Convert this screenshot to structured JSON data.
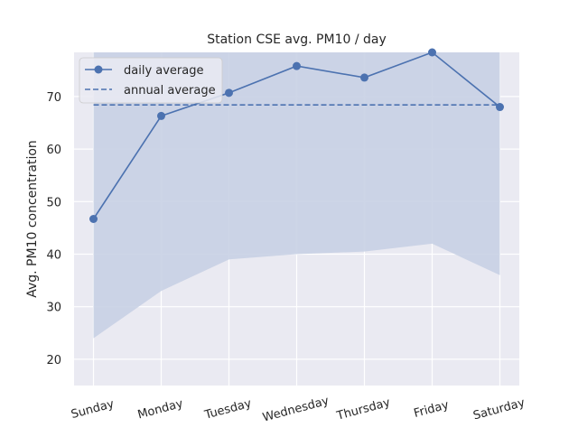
{
  "chart_data": {
    "type": "line",
    "title": "Station CSE avg. PM10 / day",
    "xlabel": "",
    "ylabel": "Avg. PM10 concentration",
    "categories": [
      "Sunday",
      "Monday",
      "Tuesday",
      "Wednesday",
      "Thursday",
      "Friday",
      "Saturday"
    ],
    "series": [
      {
        "name": "daily average",
        "values": [
          46.7,
          66.3,
          70.7,
          75.8,
          73.6,
          78.4,
          68.0
        ],
        "marker": "circle",
        "line_style": "solid"
      },
      {
        "name": "annual average",
        "values": [
          68.4,
          68.4,
          68.4,
          68.4,
          68.4,
          68.4,
          68.4
        ],
        "line_style": "dashed"
      }
    ],
    "band": {
      "lower": [
        24,
        33,
        39,
        40,
        40.5,
        42,
        36
      ],
      "upper": [
        78.4,
        78.4,
        78.4,
        78.4,
        78.4,
        78.4,
        78.4
      ]
    },
    "ylim": [
      15,
      78.4
    ],
    "yticks": [
      20,
      30,
      40,
      50,
      60,
      70
    ],
    "grid": true,
    "legend_position": "top-left",
    "colors": {
      "line": "#4c72b0",
      "band": "#c8d0e4",
      "plot_background": "#eaeaf2",
      "grid": "#ffffff",
      "text": "#262626"
    }
  }
}
